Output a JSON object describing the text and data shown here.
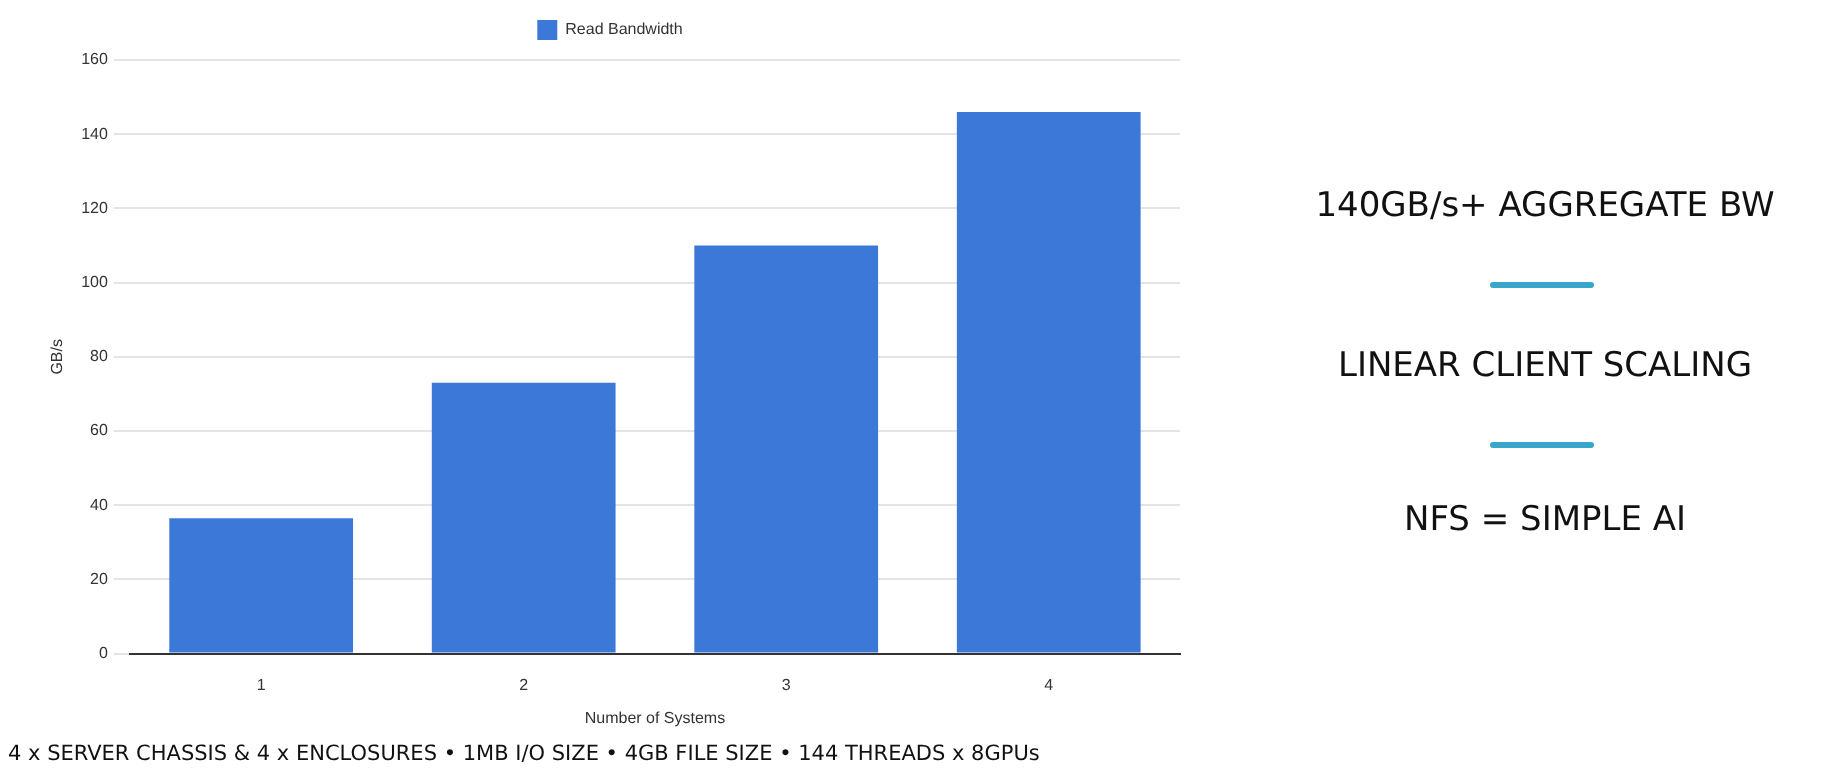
{
  "chart_data": {
    "type": "bar",
    "xlabel": "Number of Systems",
    "ylabel": "GB/s",
    "categories": [
      "1",
      "2",
      "3",
      "4"
    ],
    "series": [
      {
        "name": "Read Bandwidth",
        "color": "#3c78d8",
        "values": [
          36.5,
          73,
          110,
          146
        ]
      }
    ],
    "ylim": [
      0,
      160
    ],
    "yticks": [
      0,
      20,
      40,
      60,
      80,
      100,
      120,
      140,
      160
    ],
    "grid": "y",
    "legend": "top",
    "annotations": [
      "140GB/s+ AGGREGATE BW",
      "LINEAR CLIENT SCALING",
      "NFS = SIMPLE AI",
      "4 x SERVER CHASSIS & 4 x ENCLOSURES • 1MB I/O SIZE • 4GB FILE SIZE • 144 THREADS x 8GPUs"
    ]
  }
}
